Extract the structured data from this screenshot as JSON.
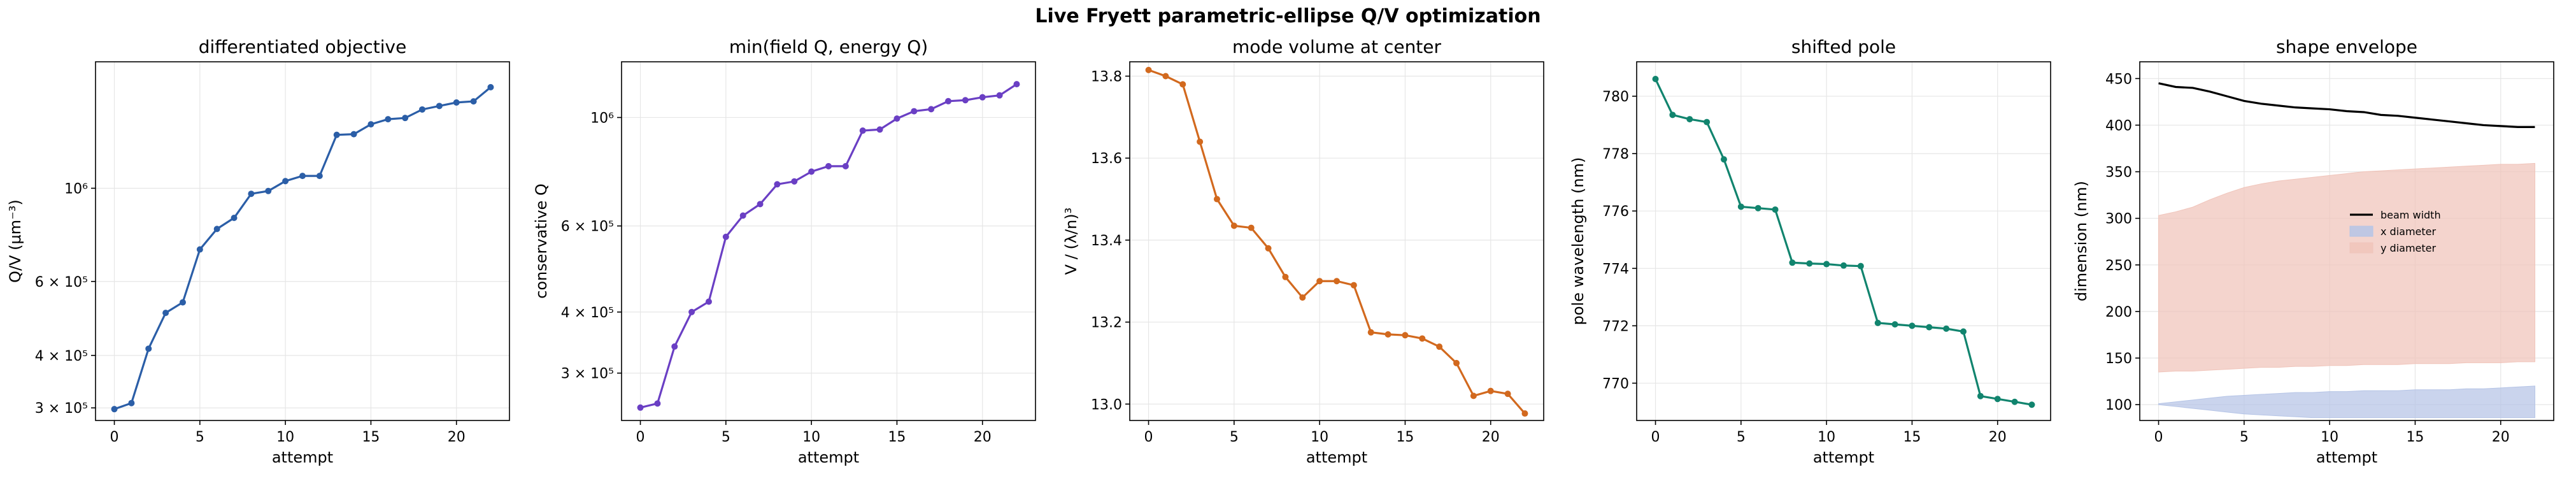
{
  "suptitle": "Live Fryett parametric-ellipse Q/V optimization",
  "chart_data": [
    {
      "type": "line",
      "title": "differentiated objective",
      "xlabel": "attempt",
      "ylabel": "Q/V (μm⁻³)",
      "yscale": "log",
      "xlim": [
        -1.1,
        23.1
      ],
      "ylim": [
        280000,
        2000000
      ],
      "xticks": [
        0,
        5,
        10,
        15,
        20
      ],
      "yticks": [
        {
          "v": 300000,
          "label": "3 × 10⁵"
        },
        {
          "v": 400000,
          "label": "4 × 10⁵"
        },
        {
          "v": 600000,
          "label": "6 × 10⁵"
        },
        {
          "v": 1000000,
          "label": "10⁶"
        }
      ],
      "grid": true,
      "color": "#2b5ea7",
      "x": [
        0,
        1,
        2,
        3,
        4,
        5,
        6,
        7,
        8,
        9,
        10,
        11,
        12,
        13,
        14,
        15,
        16,
        17,
        18,
        19,
        20,
        21,
        22
      ],
      "y": [
        298000,
        308000,
        415000,
        505000,
        535000,
        715000,
        800000,
        850000,
        970000,
        985000,
        1040000,
        1070000,
        1070000,
        1340000,
        1345000,
        1420000,
        1460000,
        1470000,
        1540000,
        1570000,
        1600000,
        1610000,
        1740000
      ]
    },
    {
      "type": "line",
      "title": "min(field Q, energy Q)",
      "xlabel": "attempt",
      "ylabel": "conservative Q",
      "yscale": "log",
      "xlim": [
        -1.1,
        23.1
      ],
      "ylim": [
        240000,
        1300000
      ],
      "xticks": [
        0,
        5,
        10,
        15,
        20
      ],
      "yticks": [
        {
          "v": 300000,
          "label": "3 × 10⁵"
        },
        {
          "v": 400000,
          "label": "4 × 10⁵"
        },
        {
          "v": 600000,
          "label": "6 × 10⁵"
        },
        {
          "v": 1000000,
          "label": "10⁶"
        }
      ],
      "grid": true,
      "color": "#6a3fc4",
      "x": [
        0,
        1,
        2,
        3,
        4,
        5,
        6,
        7,
        8,
        9,
        10,
        11,
        12,
        13,
        14,
        15,
        16,
        17,
        18,
        19,
        20,
        21,
        22
      ],
      "y": [
        255000,
        260000,
        340000,
        400000,
        420000,
        570000,
        630000,
        665000,
        730000,
        740000,
        775000,
        795000,
        795000,
        940000,
        945000,
        995000,
        1030000,
        1040000,
        1080000,
        1085000,
        1100000,
        1110000,
        1170000
      ]
    },
    {
      "type": "line",
      "title": "mode volume at center",
      "xlabel": "attempt",
      "ylabel": "V / (λ/n)³",
      "yscale": "linear",
      "xlim": [
        -1.1,
        23.1
      ],
      "ylim": [
        12.96,
        13.835
      ],
      "xticks": [
        0,
        5,
        10,
        15,
        20
      ],
      "yticks": [
        {
          "v": 13.0,
          "label": "13.0"
        },
        {
          "v": 13.2,
          "label": "13.2"
        },
        {
          "v": 13.4,
          "label": "13.4"
        },
        {
          "v": 13.6,
          "label": "13.6"
        },
        {
          "v": 13.8,
          "label": "13.8"
        }
      ],
      "grid": true,
      "color": "#d2691e",
      "x": [
        0,
        1,
        2,
        3,
        4,
        5,
        6,
        7,
        8,
        9,
        10,
        11,
        12,
        13,
        14,
        15,
        16,
        17,
        18,
        19,
        20,
        21,
        22
      ],
      "y": [
        13.815,
        13.8,
        13.78,
        13.64,
        13.5,
        13.435,
        13.43,
        13.38,
        13.31,
        13.26,
        13.3,
        13.3,
        13.29,
        13.175,
        13.17,
        13.168,
        13.16,
        13.14,
        13.1,
        13.02,
        13.032,
        13.025,
        12.977
      ]
    },
    {
      "type": "line",
      "title": "shifted pole",
      "xlabel": "attempt",
      "ylabel": "pole wavelength (nm)",
      "yscale": "linear",
      "xlim": [
        -1.1,
        23.1
      ],
      "ylim": [
        768.7,
        781.2
      ],
      "xticks": [
        0,
        5,
        10,
        15,
        20
      ],
      "yticks": [
        {
          "v": 770,
          "label": "770"
        },
        {
          "v": 772,
          "label": "772"
        },
        {
          "v": 774,
          "label": "774"
        },
        {
          "v": 776,
          "label": "776"
        },
        {
          "v": 778,
          "label": "778"
        },
        {
          "v": 780,
          "label": "780"
        }
      ],
      "grid": true,
      "color": "#11846e",
      "x": [
        0,
        1,
        2,
        3,
        4,
        5,
        6,
        7,
        8,
        9,
        10,
        11,
        12,
        13,
        14,
        15,
        16,
        17,
        18,
        19,
        20,
        21,
        22
      ],
      "y": [
        780.6,
        779.35,
        779.2,
        779.1,
        777.8,
        776.15,
        776.1,
        776.05,
        774.2,
        774.17,
        774.15,
        774.1,
        774.08,
        772.1,
        772.05,
        772.0,
        771.95,
        771.9,
        771.8,
        769.55,
        769.45,
        769.35,
        769.25
      ]
    },
    {
      "type": "area",
      "title": "shape envelope",
      "xlabel": "attempt",
      "ylabel": "dimension (nm)",
      "yscale": "linear",
      "xlim": [
        -1.1,
        23.1
      ],
      "ylim": [
        83,
        468
      ],
      "xticks": [
        0,
        5,
        10,
        15,
        20
      ],
      "yticks": [
        {
          "v": 100,
          "label": "100"
        },
        {
          "v": 150,
          "label": "150"
        },
        {
          "v": 200,
          "label": "200"
        },
        {
          "v": 250,
          "label": "250"
        },
        {
          "v": 300,
          "label": "300"
        },
        {
          "v": 350,
          "label": "350"
        },
        {
          "v": 400,
          "label": "400"
        },
        {
          "v": 450,
          "label": "450"
        }
      ],
      "grid": true,
      "legend": "center",
      "x": [
        0,
        1,
        2,
        3,
        4,
        5,
        6,
        7,
        8,
        9,
        10,
        11,
        12,
        13,
        14,
        15,
        16,
        17,
        18,
        19,
        20,
        21,
        22
      ],
      "series": [
        {
          "name": "beam width",
          "kind": "line",
          "color": "#000000",
          "values": [
            445,
            441,
            440,
            436,
            431,
            426,
            423,
            421,
            419,
            418,
            417,
            415,
            414,
            411,
            410,
            408,
            406,
            404,
            402,
            400,
            399,
            398,
            398
          ]
        },
        {
          "name": "x diameter",
          "kind": "band",
          "color": "#b5c4e6",
          "upper": [
            101,
            103,
            105,
            107,
            109,
            110,
            111,
            112,
            113,
            113,
            114,
            114,
            115,
            115,
            115,
            116,
            116,
            116,
            117,
            117,
            118,
            119,
            120
          ],
          "lower": [
            100,
            98,
            96,
            94,
            92,
            90,
            89,
            88,
            87,
            86,
            86,
            86,
            86,
            86,
            86,
            86,
            86,
            86,
            86,
            86,
            86,
            86,
            86
          ]
        },
        {
          "name": "y diameter",
          "kind": "band",
          "color": "#f0c4ba",
          "upper": [
            303,
            307,
            312,
            320,
            327,
            333,
            337,
            340,
            342,
            344,
            346,
            348,
            350,
            351,
            352,
            353,
            354,
            355,
            356,
            357,
            358,
            358,
            359
          ],
          "lower": [
            135,
            136,
            136,
            137,
            138,
            139,
            140,
            140,
            141,
            141,
            142,
            142,
            143,
            143,
            143,
            144,
            144,
            144,
            145,
            145,
            145,
            146,
            146
          ]
        }
      ]
    }
  ]
}
